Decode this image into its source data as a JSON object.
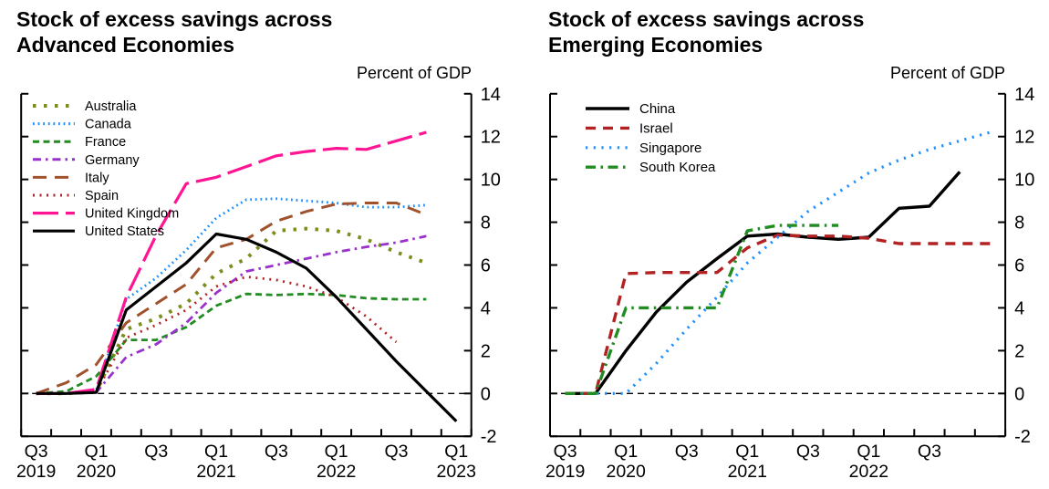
{
  "figure_background": "#ffffff",
  "chart_data": [
    {
      "type": "line",
      "title": "Stock of excess savings across\nAdvanced Economies",
      "ylabel": "Percent of GDP",
      "ylim": [
        -2,
        14
      ],
      "y_ticks": [
        -2,
        0,
        2,
        4,
        6,
        8,
        10,
        12,
        14
      ],
      "grid": false,
      "zero_line": true,
      "legend_position": "top-left-inside",
      "x_quarters": [
        "2019Q3",
        "2019Q4",
        "2020Q1",
        "2020Q2",
        "2020Q3",
        "2020Q4",
        "2021Q1",
        "2021Q2",
        "2021Q3",
        "2021Q4",
        "2022Q1",
        "2022Q2",
        "2022Q3",
        "2022Q4",
        "2023Q1"
      ],
      "x_tick_labels": [
        {
          "slot": 0,
          "q": "Q3",
          "year": "2019"
        },
        {
          "slot": 2,
          "q": "Q1",
          "year": "2020"
        },
        {
          "slot": 4,
          "q": "Q3"
        },
        {
          "slot": 6,
          "q": "Q1",
          "year": "2021"
        },
        {
          "slot": 8,
          "q": "Q3"
        },
        {
          "slot": 10,
          "q": "Q1",
          "year": "2022"
        },
        {
          "slot": 12,
          "q": "Q3"
        },
        {
          "slot": 14,
          "q": "Q1",
          "year": "2023"
        }
      ],
      "series": [
        {
          "name": "Australia",
          "color": "#7D8C1E",
          "style": "dot-square",
          "width": 4,
          "values": [
            0,
            0,
            0.1,
            3.0,
            3.5,
            4.2,
            5.6,
            6.3,
            7.6,
            7.7,
            7.6,
            7.2,
            6.6,
            6.1
          ]
        },
        {
          "name": "Canada",
          "color": "#1E90FF",
          "style": "dot-fine",
          "width": 2.8,
          "values": [
            0,
            0,
            0.15,
            4.4,
            5.4,
            6.7,
            8.2,
            9.05,
            9.1,
            9.0,
            8.9,
            8.7,
            8.7,
            8.8
          ]
        },
        {
          "name": "France",
          "color": "#228B22",
          "style": "dash",
          "width": 2.8,
          "values": [
            0,
            0.1,
            0.8,
            2.5,
            2.5,
            3.1,
            4.1,
            4.65,
            4.6,
            4.65,
            4.6,
            4.45,
            4.4,
            4.4
          ]
        },
        {
          "name": "Germany",
          "color": "#9932CC",
          "style": "dash-dot",
          "width": 2.8,
          "values": [
            0,
            0,
            0.05,
            1.7,
            2.3,
            3.3,
            4.7,
            5.7,
            6.0,
            6.3,
            6.6,
            6.85,
            7.05,
            7.35
          ]
        },
        {
          "name": "Italy",
          "color": "#A0522D",
          "style": "dash-long",
          "width": 3,
          "values": [
            0,
            0.5,
            1.35,
            3.3,
            4.2,
            5.1,
            6.8,
            7.2,
            8.05,
            8.5,
            8.85,
            8.9,
            8.9,
            8.35
          ]
        },
        {
          "name": "Spain",
          "color": "#B22222",
          "style": "dot",
          "width": 2.8,
          "values": [
            0,
            0,
            0.1,
            2.6,
            3.2,
            3.9,
            5.0,
            5.45,
            5.3,
            5.0,
            4.5,
            3.6,
            2.4
          ]
        },
        {
          "name": "United Kingdom",
          "color": "#FF1493",
          "style": "dash-xl",
          "width": 3.2,
          "values": [
            0,
            0,
            0.2,
            4.5,
            7.4,
            9.8,
            10.1,
            10.6,
            11.1,
            11.3,
            11.45,
            11.4,
            11.8,
            12.2
          ]
        },
        {
          "name": "United States",
          "color": "#000000",
          "style": "solid",
          "width": 3.2,
          "values": [
            0,
            0,
            0.05,
            3.9,
            5.0,
            6.1,
            7.45,
            7.2,
            6.6,
            5.85,
            4.5,
            3.0,
            1.5,
            0.1,
            -1.3
          ]
        }
      ]
    },
    {
      "type": "line",
      "title": "Stock of excess savings across\nEmerging Economies",
      "ylabel": "Percent of GDP",
      "ylim": [
        -2,
        14
      ],
      "y_ticks": [
        -2,
        0,
        2,
        4,
        6,
        8,
        10,
        12,
        14
      ],
      "grid": false,
      "zero_line": true,
      "legend_position": "top-left-inside",
      "x_quarters": [
        "2019Q3",
        "2019Q4",
        "2020Q1",
        "2020Q2",
        "2020Q3",
        "2020Q4",
        "2021Q1",
        "2021Q2",
        "2021Q3",
        "2021Q4",
        "2022Q1",
        "2022Q2",
        "2022Q3",
        "2022Q4",
        "2023Q1"
      ],
      "x_tick_labels": [
        {
          "slot": 0,
          "q": "Q3",
          "year": "2019"
        },
        {
          "slot": 2,
          "q": "Q1",
          "year": "2020"
        },
        {
          "slot": 4,
          "q": "Q3"
        },
        {
          "slot": 6,
          "q": "Q1",
          "year": "2021"
        },
        {
          "slot": 8,
          "q": "Q3"
        },
        {
          "slot": 10,
          "q": "Q1",
          "year": "2022"
        },
        {
          "slot": 12,
          "q": "Q3"
        }
      ],
      "series": [
        {
          "name": "China",
          "color": "#000000",
          "style": "solid",
          "width": 3.4,
          "values": [
            0,
            0,
            2.0,
            3.8,
            5.2,
            6.3,
            7.35,
            7.45,
            7.3,
            7.2,
            7.3,
            8.65,
            8.75,
            10.35
          ]
        },
        {
          "name": "Israel",
          "color": "#B22222",
          "style": "dash-med",
          "width": 3.4,
          "values": [
            0,
            0,
            5.6,
            5.65,
            5.65,
            5.65,
            6.8,
            7.4,
            7.35,
            7.35,
            7.25,
            7.0,
            7.0,
            7.0,
            7.0
          ]
        },
        {
          "name": "Singapore",
          "color": "#1E90FF",
          "style": "dot-sp",
          "width": 3.2,
          "values": [
            0,
            0,
            0,
            1.4,
            3.0,
            4.5,
            6.1,
            7.3,
            8.5,
            9.4,
            10.3,
            10.9,
            11.4,
            11.8,
            12.2
          ]
        },
        {
          "name": "South Korea",
          "color": "#228B22",
          "style": "dash-dot-bold",
          "width": 3.4,
          "values": [
            0,
            0,
            4.0,
            4.0,
            4.0,
            4.0,
            7.6,
            7.85,
            7.85,
            7.85
          ]
        }
      ]
    }
  ]
}
